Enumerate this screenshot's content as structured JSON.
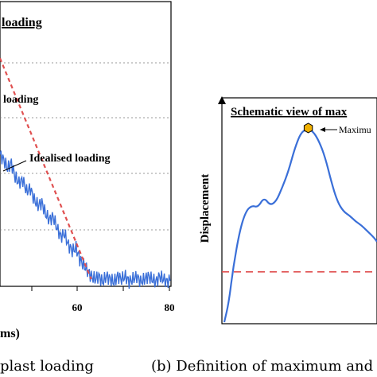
{
  "chart_data": [
    {
      "type": "line",
      "title": "loading",
      "xlabel": "ms)",
      "caption": "plast loading",
      "x_ticks": [
        "60",
        "80"
      ],
      "xlim": [
        35,
        80
      ],
      "ylim": [
        0,
        1
      ],
      "annotations": [
        "loading",
        "Idealised loading"
      ],
      "series": [
        {
          "name": "measured",
          "color": "#3a6fd8",
          "x": [
            35,
            36,
            37,
            38,
            39,
            40,
            41,
            42,
            43,
            44,
            45,
            46,
            47,
            48,
            49,
            50,
            51,
            52,
            53,
            54,
            55,
            56,
            57,
            58,
            59,
            60,
            61,
            62,
            63,
            64,
            65,
            66,
            67,
            68,
            69,
            70,
            71,
            72,
            73,
            74,
            75,
            76,
            77,
            78,
            79,
            80
          ],
          "y": [
            0.46,
            0.44,
            0.41,
            0.43,
            0.38,
            0.36,
            0.37,
            0.33,
            0.34,
            0.3,
            0.28,
            0.29,
            0.25,
            0.23,
            0.24,
            0.2,
            0.17,
            0.18,
            0.14,
            0.12,
            0.13,
            0.09,
            0.07,
            0.05,
            0.03,
            0.02,
            0.03,
            0.01,
            0.03,
            0.02,
            0.01,
            0.03,
            0.02,
            0.03,
            0.01,
            0.02,
            0.03,
            0.01,
            0.02,
            0.03,
            0.02,
            0.01,
            0.03,
            0.02,
            0.01,
            0.02
          ]
        },
        {
          "name": "idealised",
          "color": "#e05050",
          "style": "dashed",
          "x": [
            35,
            59
          ],
          "y": [
            0.8,
            0.02
          ]
        }
      ]
    },
    {
      "type": "line",
      "title": "Schematic view of max",
      "ylabel": "Displacement",
      "caption": "(b) Definition of maximum and",
      "annotations": [
        "Maximu"
      ],
      "xlim": [
        0,
        1
      ],
      "ylim": [
        0,
        1
      ],
      "reference_level": 0.25,
      "series": [
        {
          "name": "displacement",
          "color": "#3a6fd8",
          "x": [
            0,
            0.03,
            0.06,
            0.1,
            0.14,
            0.18,
            0.22,
            0.26,
            0.3,
            0.34,
            0.38,
            0.42,
            0.46,
            0.5,
            0.54,
            0.58,
            0.62,
            0.66,
            0.7,
            0.74,
            0.78,
            0.82,
            0.86,
            0.9,
            0.94,
            0.98,
            1.0
          ],
          "y": [
            0.0,
            0.1,
            0.28,
            0.45,
            0.55,
            0.58,
            0.57,
            0.62,
            0.58,
            0.6,
            0.67,
            0.75,
            0.86,
            0.94,
            0.96,
            0.95,
            0.9,
            0.82,
            0.7,
            0.6,
            0.55,
            0.53,
            0.5,
            0.48,
            0.45,
            0.42,
            0.4
          ]
        }
      ],
      "marker": {
        "x": 0.55,
        "y": 0.965,
        "color": "#f0b000"
      }
    }
  ]
}
